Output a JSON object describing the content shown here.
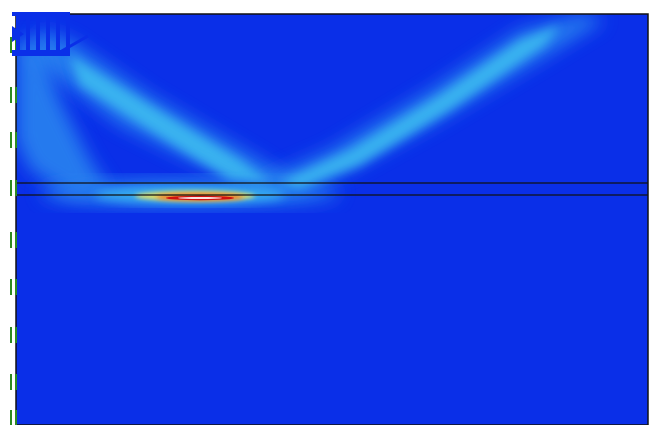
{
  "plot": {
    "background_color": "#0a2fe8",
    "frame_color": "#111111",
    "interface_line_color": "#111111",
    "mesh_line_color": "#2e8b22",
    "load_icon_color": "#0a2fe8",
    "colormap": [
      "#1040f0",
      "#2a88f0",
      "#41c6f0",
      "#8fe0d0",
      "#e8e060",
      "#f07020",
      "#d01010",
      "#ffffff"
    ]
  }
}
